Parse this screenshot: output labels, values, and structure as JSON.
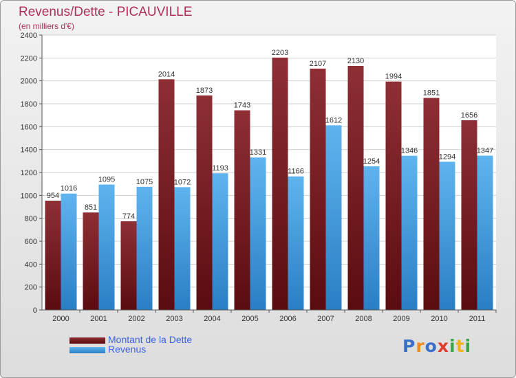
{
  "chart_data": {
    "type": "bar",
    "title": "Revenus/Dette - PICAUVILLE",
    "subtitle": "(en milliers d'€)",
    "categories": [
      "2000",
      "2001",
      "2002",
      "2003",
      "2004",
      "2005",
      "2006",
      "2007",
      "2008",
      "2009",
      "2010",
      "2011"
    ],
    "series": [
      {
        "name": "Montant de la Dette",
        "color": "#7a1e24",
        "values": [
          954,
          851,
          774,
          2014,
          1873,
          1743,
          2203,
          2107,
          2130,
          1994,
          1851,
          1656
        ]
      },
      {
        "name": "Revenus",
        "color": "#3d9de0",
        "values": [
          1016,
          1095,
          1075,
          1072,
          1193,
          1331,
          1166,
          1612,
          1254,
          1346,
          1294,
          1347
        ]
      }
    ],
    "ylim": [
      0,
      2400
    ],
    "yticks": [
      0,
      200,
      400,
      600,
      800,
      1000,
      1200,
      1400,
      1600,
      1800,
      2000,
      2200,
      2400
    ],
    "grid": true,
    "legend_position": "bottom-left"
  },
  "logo": {
    "text": "Proxiti",
    "letters": [
      {
        "ch": "P",
        "color": "#3a6fc9"
      },
      {
        "ch": "r",
        "color": "#f08a1c"
      },
      {
        "ch": "o",
        "color": "#3a6fc9"
      },
      {
        "ch": "x",
        "color": "#e23a2c"
      },
      {
        "ch": "i",
        "color": "#3aa64a"
      },
      {
        "ch": "t",
        "color": "#f0b21c"
      },
      {
        "ch": "i",
        "color": "#3aa64a"
      }
    ]
  }
}
